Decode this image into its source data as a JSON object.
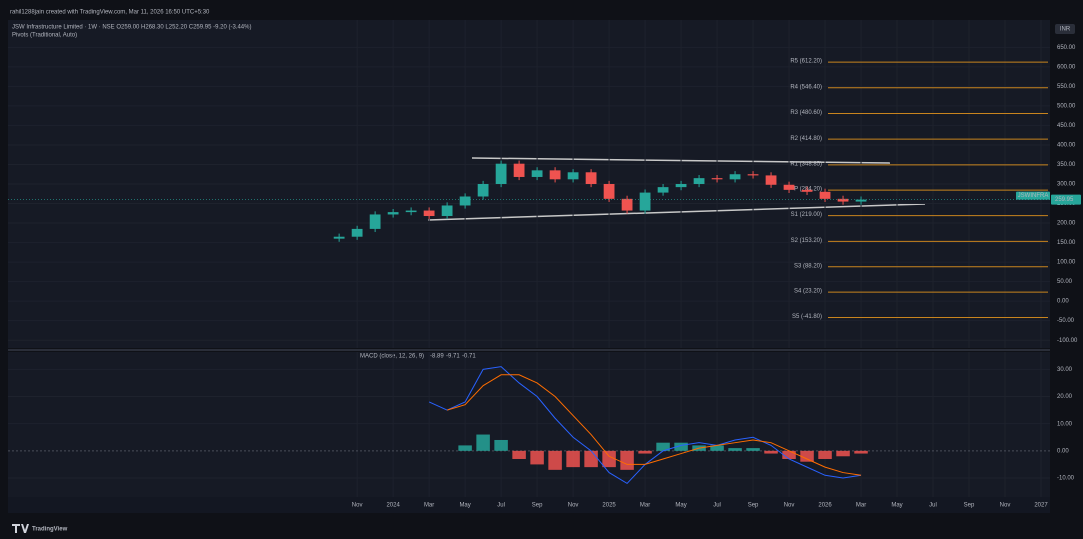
{
  "header": {
    "credit": "rahil1288jain created with TradingView.com, Mar 11, 2026 16:50 UTC+5:30",
    "legend": "JSW Infrastructure Limited · 1W · NSE  O259.00  H268.30  L252.20  C259.95  -9.20 (-3.44%)",
    "indicator": "Pivots (Traditional, Auto)",
    "currency": "INR"
  },
  "chart_data": [
    {
      "type": "candlestick",
      "symbol": "JSWINFRA",
      "last_price": {
        "value": 259.95,
        "label": "259.95"
      },
      "up_color": "#26a69a",
      "down_color": "#ef5350",
      "x": [
        -1,
        0,
        1,
        2,
        3,
        4,
        5,
        6,
        7,
        8,
        9,
        10,
        11,
        12,
        13,
        14,
        15,
        16,
        17,
        18,
        19,
        20,
        21,
        22,
        23,
        24,
        25,
        26,
        27,
        28
      ],
      "open": [
        160,
        165,
        185,
        222,
        228,
        232,
        218,
        245,
        268,
        300,
        352,
        318,
        335,
        312,
        330,
        300,
        262,
        232,
        278,
        292,
        300,
        315,
        312,
        325,
        322,
        298,
        285,
        280,
        262,
        255
      ],
      "high": [
        173,
        193,
        230,
        236,
        240,
        240,
        253,
        276,
        308,
        360,
        360,
        343,
        343,
        338,
        338,
        308,
        270,
        286,
        300,
        308,
        323,
        323,
        333,
        333,
        330,
        306,
        293,
        288,
        270,
        268
      ],
      "low": [
        152,
        157,
        177,
        214,
        220,
        210,
        210,
        237,
        260,
        292,
        310,
        310,
        304,
        304,
        292,
        254,
        224,
        224,
        270,
        284,
        292,
        304,
        304,
        314,
        290,
        277,
        272,
        254,
        247,
        247
      ],
      "close": [
        165,
        185,
        222,
        228,
        232,
        218,
        245,
        268,
        300,
        352,
        318,
        335,
        312,
        330,
        300,
        262,
        232,
        278,
        292,
        300,
        315,
        312,
        325,
        322,
        298,
        285,
        280,
        262,
        255,
        260
      ],
      "pivots": [
        {
          "label": "R5 (612.20)",
          "value": 612.2
        },
        {
          "label": "R4 (546.40)",
          "value": 546.4
        },
        {
          "label": "R3 (480.60)",
          "value": 480.6
        },
        {
          "label": "R2 (414.80)",
          "value": 414.8
        },
        {
          "label": "R1 (348.85)",
          "value": 348.85
        },
        {
          "label": "P (284.20)",
          "value": 284.2
        },
        {
          "label": "S1 (219.00)",
          "value": 219.0
        },
        {
          "label": "S2 (153.20)",
          "value": 153.2
        },
        {
          "label": "S3 (88.20)",
          "value": 88.2
        },
        {
          "label": "S4 (23.20)",
          "value": 23.2
        },
        {
          "label": "S5 (-41.80)",
          "value": -41.8
        }
      ],
      "pivot_color": "#c8841e",
      "xlim": [
        -19.4,
        38.5
      ],
      "ylim": [
        -120,
        720
      ],
      "yticks": [
        {
          "value": 650,
          "label": "650.00"
        },
        {
          "value": 600,
          "label": "600.00"
        },
        {
          "value": 550,
          "label": "550.00"
        },
        {
          "value": 500,
          "label": "500.00"
        },
        {
          "value": 450,
          "label": "450.00"
        },
        {
          "value": 400,
          "label": "400.00"
        },
        {
          "value": 350,
          "label": "350.00"
        },
        {
          "value": 300,
          "label": "300.00"
        },
        {
          "value": 250,
          "label": "250.00"
        },
        {
          "value": 200,
          "label": "200.00"
        },
        {
          "value": 150,
          "label": "150.00"
        },
        {
          "value": 100,
          "label": "100.00"
        },
        {
          "value": 50,
          "label": "50.00"
        },
        {
          "value": 0,
          "label": "0.00"
        },
        {
          "value": -50,
          "label": "-50.00"
        },
        {
          "value": -100,
          "label": "-100.00"
        }
      ]
    },
    {
      "type": "macd",
      "title": "MACD (close, 12, 26, 9)",
      "legend_values": [
        {
          "value": -8.89,
          "label": "-8.89"
        },
        {
          "value": -9.71,
          "label": "-9.71"
        },
        {
          "value": -0.71,
          "label": "-0.71"
        }
      ],
      "x": [
        -1,
        0,
        1,
        2,
        3,
        4,
        5,
        6,
        7,
        8,
        9,
        10,
        11,
        12,
        13,
        14,
        15,
        16,
        17,
        18,
        19,
        20,
        21,
        22,
        23,
        24,
        25,
        26,
        27,
        28
      ],
      "histogram": [
        null,
        null,
        null,
        null,
        null,
        null,
        0,
        2,
        6,
        4,
        -3,
        -5,
        -7,
        -6,
        -6,
        -6,
        -7,
        -1,
        3,
        3,
        2,
        2,
        1,
        1,
        -1,
        -3,
        -4,
        -3,
        -2,
        -1
      ],
      "series": [
        {
          "name": "MACD",
          "color": "#2962ff",
          "values": [
            null,
            null,
            null,
            null,
            null,
            18,
            15,
            18,
            30,
            31,
            25,
            20,
            12,
            5,
            0,
            -8,
            -12,
            -5,
            0,
            2,
            3,
            2,
            4,
            5,
            2,
            -3,
            -6,
            -9,
            -10,
            -9
          ]
        },
        {
          "name": "Signal",
          "color": "#ff6d00",
          "values": [
            null,
            null,
            null,
            null,
            null,
            null,
            15,
            17,
            24,
            28,
            28,
            25,
            20,
            13,
            6,
            -2,
            -5,
            -5,
            -3,
            -1,
            1,
            2,
            3,
            4,
            3,
            0,
            -3,
            -6,
            -8,
            -9
          ]
        }
      ],
      "hist_up_color": "#26a69a",
      "hist_down_color": "#ef5350",
      "xlim": [
        -19.4,
        38.5
      ],
      "ylim": [
        -17,
        36.4
      ],
      "yticks": [
        {
          "value": 30,
          "label": "30.00"
        },
        {
          "value": 20,
          "label": "20.00"
        },
        {
          "value": 10,
          "label": "10.00"
        },
        {
          "value": 0,
          "label": "0.00"
        },
        {
          "value": -10,
          "label": "-10.00"
        }
      ],
      "xticks": [
        {
          "value": 0,
          "label": "Nov"
        },
        {
          "value": 2,
          "label": "2024"
        },
        {
          "value": 4,
          "label": "Mar"
        },
        {
          "value": 6,
          "label": "May"
        },
        {
          "value": 8,
          "label": "Jul"
        },
        {
          "value": 10,
          "label": "Sep"
        },
        {
          "value": 12,
          "label": "Nov"
        },
        {
          "value": 14,
          "label": "2025"
        },
        {
          "value": 16,
          "label": "Mar"
        },
        {
          "value": 18,
          "label": "May"
        },
        {
          "value": 20,
          "label": "Jul"
        },
        {
          "value": 22,
          "label": "Sep"
        },
        {
          "value": 24,
          "label": "Nov"
        },
        {
          "value": 26,
          "label": "2026"
        },
        {
          "value": 28,
          "label": "Mar"
        },
        {
          "value": 30,
          "label": "May"
        },
        {
          "value": 32,
          "label": "Jul"
        },
        {
          "value": 34,
          "label": "Sep"
        },
        {
          "value": 36,
          "label": "Nov"
        },
        {
          "value": 38,
          "label": "2027"
        }
      ]
    }
  ],
  "footer": {
    "brand": "TradingView"
  }
}
